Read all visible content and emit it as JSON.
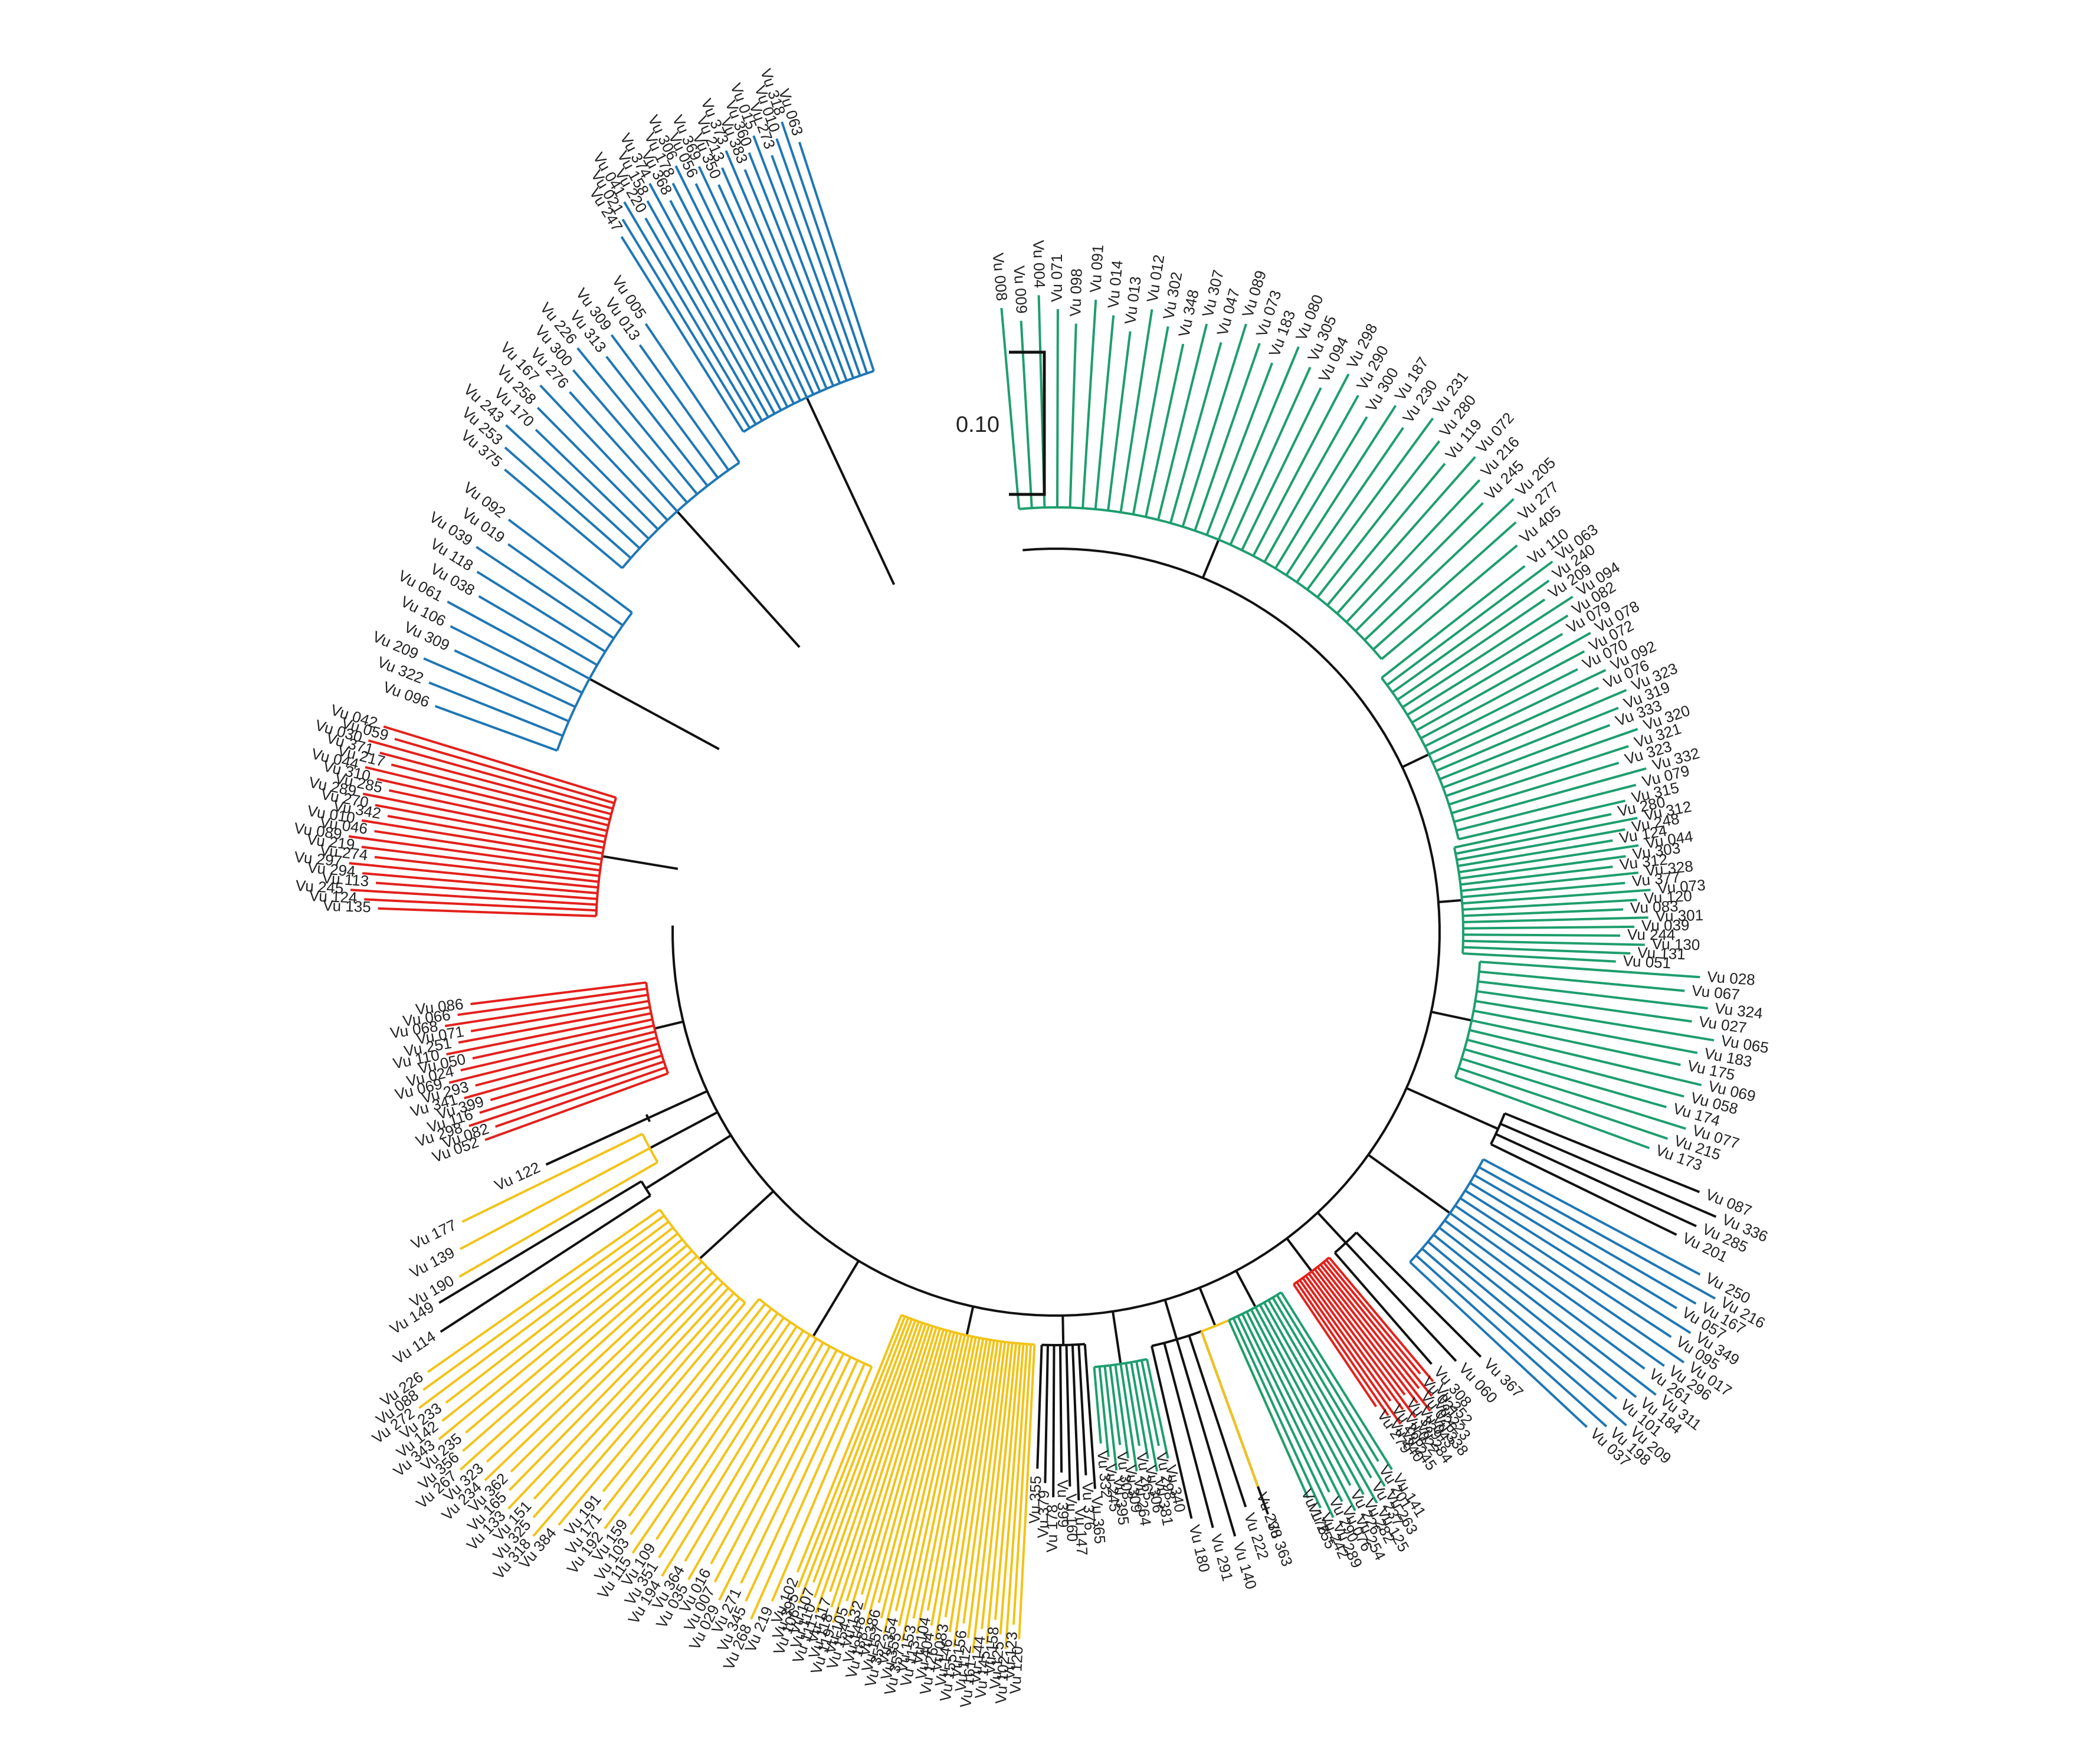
{
  "scale_bar": {
    "label": "0.10",
    "branch_length": 0.1
  },
  "colors": {
    "blue": "#1f77b4",
    "red": "#e3211c",
    "yellow": "#f2c318",
    "green": "#1e9e6e",
    "black": "#111111"
  },
  "clades": [
    {
      "color": "blue",
      "leaves": [
        "Vu 247",
        "Vu 021",
        "Vu 041",
        "Vu 220",
        "Vu 158",
        "Vu 374",
        "Vu 368",
        "Vu 178",
        "Vu 306",
        "Vu 056",
        "Vu 369",
        "Vu 350",
        "Vu 213",
        "Vu 373",
        "Vu 383",
        "Vu 360",
        "Vu 015",
        "Vu 273",
        "Vu 010",
        "Vu 318",
        "Vu 063"
      ]
    },
    {
      "color": "blue",
      "leaves": [
        "Vu 375",
        "Vu 253",
        "Vu 243",
        "Vu 170",
        "Vu 258",
        "Vu 167",
        "Vu 276",
        "Vu 300",
        "Vu 226",
        "Vu 313",
        "Vu 309",
        "Vu 013",
        "Vu 005"
      ]
    },
    {
      "color": "blue",
      "leaves": [
        "Vu 096",
        "Vu 322",
        "Vu 209",
        "Vu 309",
        "Vu 106",
        "Vu 061",
        "Vu 038",
        "Vu 118",
        "Vu 039",
        "Vu 019",
        "Vu 092"
      ]
    },
    {
      "color": "red",
      "leaves": [
        "Vu 135",
        "Vu 124",
        "Vu 245",
        "Vu 113",
        "Vu 294",
        "Vu 297",
        "Vu 274",
        "Vu 219",
        "Vu 089",
        "Vu 046",
        "Vu 010",
        "Vu 342",
        "Vu 270",
        "Vu 289",
        "Vu 285",
        "Vu 310",
        "Vu 044",
        "Vu 217",
        "Vu 371",
        "Vu 030",
        "Vu 059",
        "Vu 042"
      ]
    },
    {
      "color": "red",
      "leaves": [
        "Vu 086",
        "Vu 066",
        "Vu 068",
        "Vu 071",
        "Vu 251",
        "Vu 110",
        "Vu 050",
        "Vu 024",
        "Vu 069",
        "Vu 293",
        "Vu 341",
        "Vu 399",
        "Vu 116",
        "Vu 298",
        "Vu 082",
        "Vu 052"
      ]
    },
    {
      "color": "black",
      "leaves": [
        "Vu 122"
      ]
    },
    {
      "color": "yellow",
      "leaves": [
        "Vu 177",
        "Vu 139",
        "Vu 190"
      ]
    },
    {
      "color": "black",
      "leaves": [
        "Vu 149",
        "Vu 114"
      ]
    },
    {
      "color": "yellow",
      "leaves": [
        "Vu 226",
        "Vu 088",
        "Vu 272",
        "Vu 233",
        "Vu 142",
        "Vu 343",
        "Vu 235",
        "Vu 356",
        "Vu 267",
        "Vu 323",
        "Vu 234",
        "Vu 362",
        "Vu 165",
        "Vu 133",
        "Vu 151",
        "Vu 325",
        "Vu 318",
        "Vu 384"
      ]
    },
    {
      "color": "yellow",
      "leaves": [
        "Vu 191",
        "Vu 171",
        "Vu 192",
        "Vu 159",
        "Vu 103",
        "Vu 115",
        "Vu 109",
        "Vu 351",
        "Vu 194",
        "Vu 364",
        "Vu 035",
        "Vu 016",
        "Vu 007",
        "Vu 029",
        "Vu 271",
        "Vu 345",
        "Vu 268",
        "Vu 219"
      ]
    },
    {
      "color": "yellow",
      "leaves": [
        "Vu 102",
        "Vu 395",
        "Vu 106",
        "Vu 107",
        "Vu 110",
        "Vu 111",
        "Vu 117",
        "Vu 118",
        "Vu 119",
        "Vu 105",
        "Vu 154",
        "Vu 132",
        "Vu 148",
        "Vu 188",
        "Vu 386",
        "Vu 157",
        "Vu 352",
        "Vu 354",
        "Vu 355",
        "Vu 357",
        "Vu 153",
        "Vu 113",
        "Vu 104",
        "Vu 404",
        "Vu 126",
        "Vu 083",
        "Vu 146",
        "Vu 155",
        "Vu 156",
        "Vu 112",
        "Vu 161",
        "Vu 144",
        "Vu 145",
        "Vu 158",
        "Vu 125",
        "Vu 102",
        "Vu 123",
        "Vu 120"
      ]
    },
    {
      "color": "black",
      "leaves": [
        "Vu 355",
        "Vu 379",
        "Vu 178",
        "Vu 399",
        "Vu 160",
        "Vu 147",
        "Vu 376",
        "Vu 365"
      ]
    },
    {
      "color": "green",
      "leaves": [
        "Vu 332",
        "Vu 245",
        "Vu 395",
        "Vu 308",
        "Vu 309",
        "Vu 264",
        "Vu 265",
        "Vu 306",
        "Vu 381",
        "Vu 298",
        "Vu 340"
      ]
    },
    {
      "color": "black",
      "leaves": [
        "Vu 180",
        "Vu 291",
        "Vu 140",
        "Vu 222",
        "Vu 363"
      ]
    },
    {
      "color": "yellow",
      "leaves": [
        "Vu 238",
        "Vu 176"
      ]
    },
    {
      "color": "green",
      "leaves": [
        "Vu 255",
        "Vu 242",
        "Vu 289",
        "Vu 290",
        "Vu 076",
        "Vu 254",
        "Vu 226",
        "Vu 282",
        "Vu 125",
        "Vu 237",
        "Vu 263",
        "Vu 201",
        "Vu 141"
      ]
    },
    {
      "color": "red",
      "leaves": [
        "Vu 279",
        "Vu 240",
        "Vu 245",
        "Vu 266",
        "Vu 022",
        "Vu 284",
        "Vu 339",
        "Vu 043",
        "Vu 338",
        "Vu 026",
        "Vu 223",
        "Vu 031",
        "Vu 252"
      ]
    },
    {
      "color": "black",
      "leaves": [
        "Vu 308",
        "Vu 060",
        "Vu 367"
      ]
    },
    {
      "color": "blue",
      "leaves": [
        "Vu 037",
        "Vu 198",
        "Vu 209",
        "Vu 101",
        "Vu 184",
        "Vu 311",
        "Vu 261",
        "Vu 296",
        "Vu 017",
        "Vu 095",
        "Vu 349",
        "Vu 057",
        "Vu 167",
        "Vu 216",
        "Vu 250"
      ]
    },
    {
      "color": "black",
      "leaves": [
        "Vu 201",
        "Vu 285",
        "Vu 336",
        "Vu 087"
      ]
    },
    {
      "color": "green",
      "leaves": [
        "Vu 173",
        "Vu 215",
        "Vu 077",
        "Vu 174",
        "Vu 058",
        "Vu 069",
        "Vu 175",
        "Vu 183",
        "Vu 065",
        "Vu 027",
        "Vu 324",
        "Vu 067",
        "Vu 028"
      ]
    },
    {
      "color": "green",
      "leaves": [
        "Vu 051",
        "Vu 131",
        "Vu 130",
        "Vu 244",
        "Vu 039",
        "Vu 301",
        "Vu 083",
        "Vu 120",
        "Vu 073",
        "Vu 377",
        "Vu 328",
        "Vu 312",
        "Vu 303",
        "Vu 044",
        "Vu 124",
        "Vu 248",
        "Vu 312",
        "Vu 280"
      ]
    },
    {
      "color": "green",
      "leaves": [
        "Vu 315",
        "Vu 079",
        "Vu 332",
        "Vu 323",
        "Vu 321",
        "Vu 320",
        "Vu 333",
        "Vu 319",
        "Vu 323",
        "Vu 076",
        "Vu 092",
        "Vu 070",
        "Vu 072",
        "Vu 078",
        "Vu 079",
        "Vu 082",
        "Vu 094",
        "Vu 209",
        "Vu 240",
        "Vu 063",
        "Vu 110"
      ]
    },
    {
      "color": "green",
      "leaves": [
        "Vu 405",
        "Vu 277",
        "Vu 205",
        "Vu 245",
        "Vu 216",
        "Vu 072",
        "Vu 119",
        "Vu 280",
        "Vu 231",
        "Vu 230",
        "Vu 187",
        "Vu 300",
        "Vu 290",
        "Vu 298",
        "Vu 094",
        "Vu 305",
        "Vu 080",
        "Vu 183",
        "Vu 073",
        "Vu 089",
        "Vu 047",
        "Vu 307",
        "Vu 348",
        "Vu 302",
        "Vu 012",
        "Vu 013",
        "Vu 014",
        "Vu 091",
        "Vu 098",
        "Vu 071",
        "Vu 004",
        "Vu 009",
        "Vu 008"
      ]
    }
  ]
}
